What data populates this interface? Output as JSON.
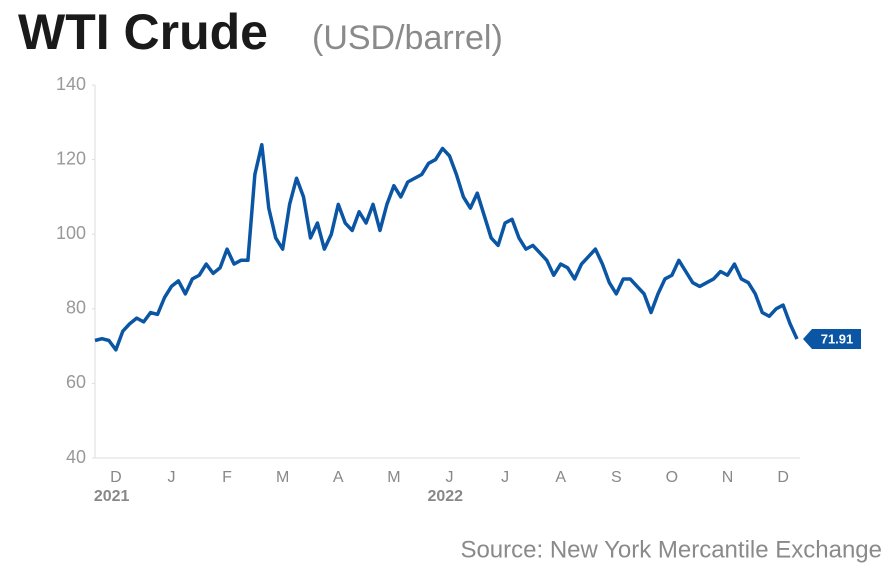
{
  "chart_data": {
    "type": "line",
    "title": "WTI Crude",
    "subtitle": "(USD/barrel)",
    "source": "Source: New York Mercantile Exchange",
    "years": [
      "2021",
      "2022"
    ],
    "categories": [
      null,
      null,
      null,
      "D",
      null,
      null,
      null,
      null,
      null,
      null,
      null,
      "J",
      null,
      null,
      null,
      null,
      null,
      null,
      null,
      "F",
      null,
      null,
      null,
      null,
      null,
      null,
      null,
      "M",
      null,
      null,
      null,
      null,
      null,
      null,
      null,
      "A",
      null,
      null,
      null,
      null,
      null,
      null,
      null,
      "M",
      null,
      null,
      null,
      null,
      null,
      null,
      null,
      "J",
      null,
      null,
      null,
      null,
      null,
      null,
      null,
      "J",
      null,
      null,
      null,
      null,
      null,
      null,
      null,
      "A",
      null,
      null,
      null,
      null,
      null,
      null,
      null,
      "S",
      null,
      null,
      null,
      null,
      null,
      null,
      null,
      "O",
      null,
      null,
      null,
      null,
      null,
      null,
      null,
      "N",
      null,
      null,
      null,
      null,
      null,
      null,
      null,
      "D",
      null,
      null
    ],
    "values": [
      71.5,
      72,
      71.5,
      69,
      74,
      76,
      77.5,
      76.5,
      79,
      78.5,
      83,
      86,
      87.5,
      84,
      88,
      89,
      92,
      89.5,
      91,
      96,
      92,
      93,
      93,
      116,
      124,
      107,
      99,
      96,
      108,
      115,
      110,
      99,
      103,
      96,
      100,
      108,
      103,
      101,
      106,
      103,
      108,
      101,
      108,
      113,
      110,
      114,
      115,
      116,
      119,
      120,
      123,
      121,
      116,
      110,
      107,
      111,
      105,
      99,
      97,
      103,
      104,
      99,
      96,
      97,
      95,
      93,
      89,
      92,
      91,
      88,
      92,
      94,
      96,
      92,
      87,
      84,
      88,
      88,
      86,
      84,
      79,
      84,
      88,
      89,
      93,
      90,
      87,
      86,
      87,
      88,
      90,
      89,
      92,
      88,
      87,
      84,
      79,
      78,
      80,
      81,
      76,
      71.91
    ],
    "color": "#0b56a4",
    "ylim": [
      40,
      140
    ],
    "yticks": [
      40,
      60,
      80,
      100,
      120,
      140
    ],
    "grid": false
  }
}
